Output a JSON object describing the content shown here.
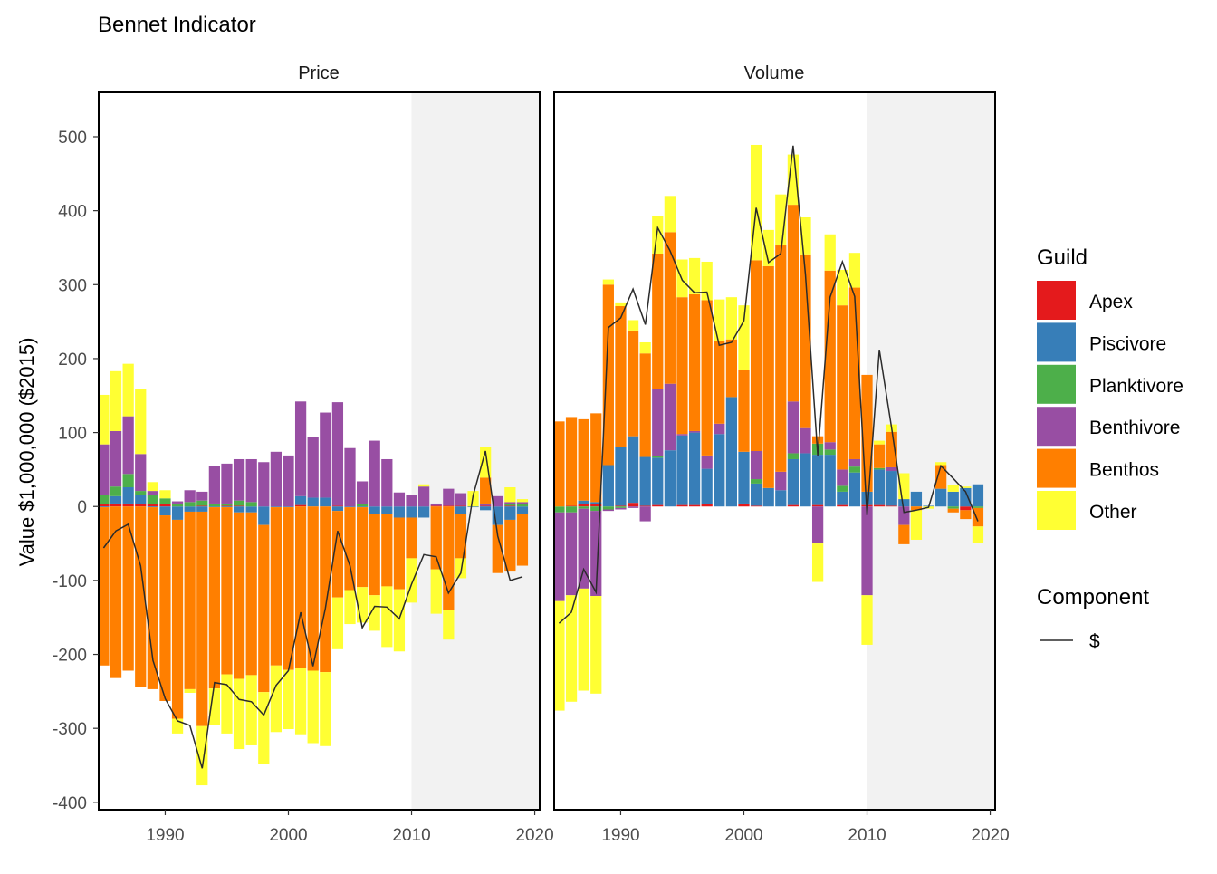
{
  "chart_data": {
    "type": "bar",
    "title": "Bennet Indicator",
    "ylabel": "Value $1,000,000 ($2015)",
    "xlabel": "",
    "ylim": [
      -410,
      560
    ],
    "xlim": [
      1984.6,
      2020.4
    ],
    "xticks": [
      1990,
      2000,
      2010,
      2020
    ],
    "yticks": [
      -400,
      -300,
      -200,
      -100,
      0,
      100,
      200,
      300,
      400,
      500
    ],
    "shaded_region": [
      2010,
      2020.4
    ],
    "guilds": [
      "Apex",
      "Piscivore",
      "Planktivore",
      "Benthivore",
      "Benthos",
      "Other"
    ],
    "colors": {
      "Apex": "#E41A1C",
      "Piscivore": "#377EB8",
      "Planktivore": "#4DAF4A",
      "Benthivore": "#984EA3",
      "Benthos": "#FF7F00",
      "Other": "#FFFF33",
      "line": "#2b2b2b",
      "shade": "#f2f2f2"
    },
    "legend": {
      "guild_title": "Guild",
      "component_title": "Component",
      "component_label": "$",
      "placement": "right"
    },
    "panels": [
      {
        "name": "Price",
        "years": [
          1985,
          1986,
          1987,
          1988,
          1989,
          1990,
          1991,
          1992,
          1993,
          1994,
          1995,
          1996,
          1997,
          1998,
          1999,
          2000,
          2001,
          2002,
          2003,
          2004,
          2005,
          2006,
          2007,
          2008,
          2009,
          2010,
          2011,
          2012,
          2013,
          2014,
          2015,
          2016,
          2017,
          2018,
          2019
        ],
        "series": [
          {
            "name": "Apex",
            "values": [
              3,
              4,
              4,
              3,
              3,
              3,
              0,
              0,
              1,
              0,
              1,
              1,
              0,
              0,
              0,
              0,
              2,
              0,
              0,
              1,
              0,
              0,
              0,
              0,
              0,
              0,
              0,
              1,
              1,
              1,
              0,
              1,
              0,
              1,
              0
            ]
          },
          {
            "name": "Piscivore",
            "values": [
              -1,
              10,
              22,
              12,
              -1,
              -12,
              -18,
              -7,
              -7,
              -1,
              -1,
              -8,
              -8,
              -25,
              -1,
              -1,
              12,
              12,
              12,
              -6,
              -1,
              -1,
              -10,
              -10,
              -15,
              -15,
              -15,
              0,
              0,
              -10,
              -1,
              -5,
              -25,
              -18,
              -10
            ]
          },
          {
            "name": "Planktivore",
            "values": [
              13,
              13,
              18,
              6,
              12,
              8,
              4,
              6,
              7,
              4,
              3,
              7,
              6,
              0,
              0,
              0,
              0,
              0,
              0,
              0,
              0,
              3,
              0,
              0,
              0,
              0,
              0,
              0,
              0,
              0,
              0,
              0,
              0,
              2,
              3
            ]
          },
          {
            "name": "Benthivore",
            "values": [
              68,
              75,
              78,
              50,
              6,
              0,
              3,
              16,
              12,
              51,
              54,
              56,
              58,
              60,
              74,
              69,
              128,
              82,
              115,
              140,
              79,
              31,
              89,
              64,
              19,
              15,
              27,
              3,
              23,
              17,
              0,
              3,
              14,
              3,
              3
            ]
          },
          {
            "name": "Benthos",
            "values": [
              -214,
              -232,
              -222,
              -244,
              -246,
              -251,
              -269,
              -240,
              -290,
              -245,
              -226,
              -225,
              -220,
              -226,
              -214,
              -220,
              -218,
              -222,
              -224,
              -117,
              -112,
              -108,
              -110,
              -98,
              -97,
              -55,
              0,
              -85,
              -140,
              -60,
              0,
              35,
              -65,
              -70,
              -70
            ]
          },
          {
            "name": "Other",
            "values": [
              67,
              81,
              71,
              88,
              12,
              11,
              -20,
              -5,
              -80,
              -50,
              -80,
              -95,
              -95,
              -97,
              -90,
              -80,
              -90,
              -98,
              -100,
              -70,
              -46,
              -48,
              -48,
              -82,
              -84,
              -60,
              3,
              -60,
              -40,
              -27,
              21,
              41,
              0,
              20,
              4
            ]
          }
        ],
        "total": [
          -56,
          -33,
          -24,
          -80,
          -208,
          -260,
          -290,
          -296,
          -354,
          -238,
          -241,
          -261,
          -264,
          -282,
          -242,
          -222,
          -143,
          -216,
          -138,
          -33,
          -80,
          -164,
          -135,
          -136,
          -152,
          -105,
          -65,
          -68,
          -117,
          -90,
          15,
          75,
          -40,
          -100,
          -95
        ]
      },
      {
        "name": "Volume",
        "years": [
          1985,
          1986,
          1987,
          1988,
          1989,
          1990,
          1991,
          1992,
          1993,
          1994,
          1995,
          1996,
          1997,
          1998,
          1999,
          2000,
          2001,
          2002,
          2003,
          2004,
          2005,
          2006,
          2007,
          2008,
          2009,
          2010,
          2011,
          2012,
          2013,
          2014,
          2015,
          2016,
          2017,
          2018,
          2019
        ],
        "series": [
          {
            "name": "Apex",
            "values": [
              0,
              1,
              3,
              3,
              0,
              1,
              5,
              1,
              2,
              0,
              2,
              2,
              3,
              0,
              0,
              4,
              1,
              0,
              0,
              2,
              0,
              2,
              0,
              2,
              0,
              2,
              2,
              1,
              0,
              0,
              0,
              0,
              0,
              -5,
              0
            ]
          },
          {
            "name": "Piscivore",
            "values": [
              0,
              0,
              5,
              3,
              56,
              80,
              90,
              66,
              64,
              76,
              94,
              98,
              48,
              98,
              148,
              70,
              30,
              25,
              22,
              62,
              72,
              68,
              70,
              18,
              46,
              18,
              48,
              47,
              10,
              20,
              1,
              24,
              20,
              25,
              30
            ]
          },
          {
            "name": "Planktivore",
            "values": [
              -8,
              -8,
              -3,
              -6,
              -4,
              -2,
              0,
              0,
              2,
              0,
              0,
              0,
              0,
              0,
              0,
              0,
              6,
              0,
              0,
              8,
              0,
              15,
              7,
              8,
              8,
              0,
              2,
              0,
              0,
              0,
              0,
              0,
              -3,
              0,
              -2
            ]
          },
          {
            "name": "Benthivore",
            "values": [
              -120,
              -112,
              -108,
              -115,
              -2,
              -2,
              -2,
              -20,
              91,
              90,
              2,
              2,
              18,
              14,
              0,
              0,
              38,
              0,
              25,
              70,
              34,
              -50,
              10,
              22,
              10,
              -120,
              0,
              5,
              -25,
              0,
              0,
              0,
              0,
              0,
              0
            ]
          },
          {
            "name": "Benthos",
            "values": [
              115,
              120,
              110,
              120,
              244,
              190,
              143,
              140,
              183,
              205,
              185,
              185,
              210,
              112,
              78,
              110,
              258,
              300,
              306,
              266,
              235,
              10,
              232,
              222,
              232,
              158,
              32,
              48,
              -26,
              -5,
              0,
              32,
              -5,
              -12,
              -25
            ]
          },
          {
            "name": "Other",
            "values": [
              -148,
              -144,
              -138,
              -132,
              7,
              5,
              14,
              15,
              51,
              49,
              51,
              49,
              52,
              56,
              57,
              88,
              156,
              49,
              69,
              68,
              50,
              -52,
              49,
              48,
              47,
              -67,
              5,
              10,
              35,
              -40,
              -3,
              4,
              9,
              2,
              -22
            ]
          }
        ],
        "total": [
          -158,
          -143,
          -85,
          -116,
          242,
          255,
          294,
          246,
          377,
          346,
          306,
          289,
          290,
          218,
          222,
          251,
          404,
          330,
          342,
          488,
          314,
          69,
          283,
          331,
          284,
          -12,
          212,
          106,
          -8,
          -5,
          -1,
          55,
          38,
          20,
          -20
        ]
      }
    ]
  }
}
